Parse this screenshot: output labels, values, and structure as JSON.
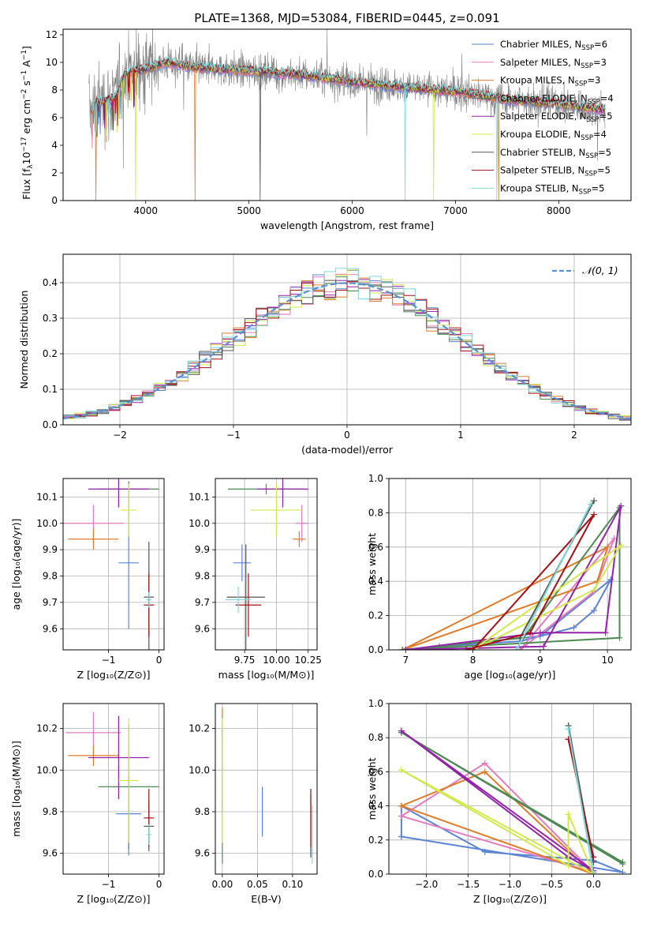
{
  "colors": {
    "blue": "#5b84d6",
    "pink": "#e37bbd",
    "orange": "#e07b28",
    "green": "#4f8a55",
    "purple": "#9322a8",
    "yellow": "#d3e84a",
    "gray": "#555555",
    "red": "#a50f15",
    "cyan": "#7fd8d8",
    "dashed": "#5b8fd6"
  },
  "chart_data": [
    {
      "id": "spectrum",
      "type": "line",
      "title": "PLATE=1368, MJD=53084, FIBERID=0445, z=0.091",
      "xlabel": "wavelength [Angstrom, rest frame]",
      "ylabel": "Flux [f_λ10^-17 erg cm^-2 s^-1 A^-1]",
      "ylabel_parts": {
        "a": "Flux [f",
        "b": "λ",
        "c": "10",
        "d": "−17",
        "e": " erg cm",
        "f": "−2",
        "g": " s",
        "h": "−1",
        "i": " A",
        "j": "−1",
        "k": "]"
      },
      "xlim": [
        3200,
        8700
      ],
      "ylim": [
        0,
        12.4
      ],
      "xticks": [
        "4000",
        "5000",
        "6000",
        "7000",
        "8000"
      ],
      "xtick_values": [
        4000,
        5000,
        6000,
        7000,
        8000
      ],
      "yticks": [
        "0",
        "2",
        "4",
        "6",
        "8",
        "10",
        "12"
      ],
      "ytick_values": [
        0,
        2,
        4,
        6,
        8,
        10,
        12
      ],
      "continuum": [
        [
          3500,
          7.0
        ],
        [
          3700,
          7.4
        ],
        [
          3800,
          9.2
        ],
        [
          4000,
          9.5
        ],
        [
          4200,
          10.0
        ],
        [
          4500,
          9.6
        ],
        [
          5000,
          9.4
        ],
        [
          5500,
          9.1
        ],
        [
          6000,
          8.6
        ],
        [
          6500,
          8.2
        ],
        [
          7000,
          7.9
        ],
        [
          7500,
          7.3
        ],
        [
          8000,
          7.0
        ],
        [
          8400,
          6.6
        ]
      ],
      "observed_range": [
        3450,
        8450
      ],
      "legend": [
        {
          "base": "Chabrier MILES, N",
          "sub": "SSP",
          "tail": "=6",
          "color": "blue"
        },
        {
          "base": "Salpeter MILES, N",
          "sub": "SSP",
          "tail": "=3",
          "color": "pink"
        },
        {
          "base": "Kroupa MILES, N",
          "sub": "SSP",
          "tail": "=3",
          "color": "orange"
        },
        {
          "base": "Chabrier ELODIE, N",
          "sub": "SSP",
          "tail": "=4",
          "color": "green"
        },
        {
          "base": "Salpeter ELODIE, N",
          "sub": "SSP",
          "tail": "=5",
          "color": "purple"
        },
        {
          "base": "Kroupa ELODIE, N",
          "sub": "SSP",
          "tail": "=4",
          "color": "yellow"
        },
        {
          "base": "Chabrier STELIB, N",
          "sub": "SSP",
          "tail": "=5",
          "color": "gray"
        },
        {
          "base": "Salpeter STELIB, N",
          "sub": "SSP",
          "tail": "=5",
          "color": "red"
        },
        {
          "base": "Kroupa STELIB, N",
          "sub": "SSP",
          "tail": "=5",
          "color": "cyan"
        }
      ]
    },
    {
      "id": "residuals",
      "type": "line",
      "xlabel": "(data-model)/error",
      "ylabel": "Normed distribution",
      "xlim": [
        -2.5,
        2.5
      ],
      "ylim": [
        0,
        0.48
      ],
      "xticks": [
        "−2",
        "−1",
        "0",
        "1",
        "2"
      ],
      "xtick_values": [
        -2,
        -1,
        0,
        1,
        2
      ],
      "yticks": [
        "0.0",
        "0.1",
        "0.2",
        "0.3",
        "0.4"
      ],
      "ytick_values": [
        0,
        0.1,
        0.2,
        0.3,
        0.4
      ],
      "bin_width": 0.1,
      "legend": {
        "label": "𝒩(0, 1)",
        "color": "dashed"
      }
    },
    {
      "id": "age_vs_Z",
      "type": "scatter",
      "xlabel": "Z [log₁₀(Z/Z⊙)]",
      "ylabel": "age  [log₁₀(age/yr)]",
      "xlim": [
        -1.9,
        0.1
      ],
      "ylim": [
        9.52,
        10.17
      ],
      "xticks": [
        "−1",
        "0"
      ],
      "xtick_values": [
        -1,
        0
      ],
      "yticks": [
        "9.6",
        "9.7",
        "9.8",
        "9.9",
        "10.0",
        "10.1"
      ],
      "ytick_values": [
        9.6,
        9.7,
        9.8,
        9.9,
        10.0,
        10.1
      ],
      "points": [
        {
          "x": -0.6,
          "xerr": 0.2,
          "y": 9.85,
          "yerr": 0.25,
          "color": "blue"
        },
        {
          "x": -1.3,
          "xerr": 0.6,
          "y": 10.0,
          "yerr": 0.07,
          "color": "pink"
        },
        {
          "x": -1.3,
          "xerr": 0.5,
          "y": 9.94,
          "yerr": 0.04,
          "color": "orange"
        },
        {
          "x": -0.6,
          "xerr": 0.6,
          "y": 10.13,
          "yerr": 0.03,
          "color": "green"
        },
        {
          "x": -0.8,
          "xerr": 0.6,
          "y": 10.13,
          "yerr": 0.07,
          "color": "purple"
        },
        {
          "x": -0.6,
          "xerr": 0.15,
          "y": 10.05,
          "yerr": 0.1,
          "color": "yellow"
        },
        {
          "x": -0.2,
          "xerr": 0.1,
          "y": 9.72,
          "yerr": 0.21,
          "color": "gray"
        },
        {
          "x": -0.2,
          "xerr": 0.1,
          "y": 9.69,
          "yerr": 0.12,
          "color": "red"
        },
        {
          "x": -0.2,
          "xerr": 0.05,
          "y": 9.71,
          "yerr": 0.03,
          "color": "cyan"
        }
      ]
    },
    {
      "id": "age_vs_mass",
      "type": "scatter",
      "xlabel": "mass [log₁₀(M/M⊙)]",
      "ylabel": "",
      "xlim": [
        9.52,
        10.32
      ],
      "ylim": [
        9.52,
        10.17
      ],
      "xticks": [
        "9.75",
        "10.00",
        "10.25"
      ],
      "xtick_values": [
        9.75,
        10.0,
        10.25
      ],
      "yticks": [
        "9.6",
        "9.7",
        "9.8",
        "9.9",
        "10.0",
        "10.1"
      ],
      "ytick_values": [
        9.6,
        9.7,
        9.8,
        9.9,
        10.0,
        10.1
      ],
      "points": [
        {
          "x": 9.73,
          "xerr": 0.07,
          "y": 9.85,
          "yerr": 0.07,
          "color": "blue"
        },
        {
          "x": 10.2,
          "xerr": 0.05,
          "y": 10.0,
          "yerr": 0.07,
          "color": "pink"
        },
        {
          "x": 10.18,
          "xerr": 0.05,
          "y": 9.94,
          "yerr": 0.03,
          "color": "orange"
        },
        {
          "x": 9.92,
          "xerr": 0.3,
          "y": 10.13,
          "yerr": 0.02,
          "color": "green"
        },
        {
          "x": 10.05,
          "xerr": 0.2,
          "y": 10.13,
          "yerr": 0.07,
          "color": "purple"
        },
        {
          "x": 10.0,
          "xerr": 0.2,
          "y": 10.05,
          "yerr": 0.1,
          "color": "yellow"
        },
        {
          "x": 9.76,
          "xerr": 0.15,
          "y": 9.72,
          "yerr": 0.2,
          "color": "gray"
        },
        {
          "x": 9.78,
          "xerr": 0.1,
          "y": 9.69,
          "yerr": 0.12,
          "color": "red"
        },
        {
          "x": 9.7,
          "xerr": 0.1,
          "y": 9.71,
          "yerr": 0.05,
          "color": "cyan"
        }
      ]
    },
    {
      "id": "massweight_vs_age",
      "type": "line",
      "xlabel": "age  [log₁₀(age/yr)]",
      "ylabel": "mass weight",
      "xlim": [
        6.75,
        10.35
      ],
      "ylim": [
        0,
        1.0
      ],
      "xticks": [
        "7",
        "8",
        "9",
        "10"
      ],
      "xtick_values": [
        7,
        8,
        9,
        10
      ],
      "yticks": [
        "0.0",
        "0.2",
        "0.4",
        "0.6",
        "0.8",
        "1.0"
      ],
      "ytick_values": [
        0,
        0.2,
        0.4,
        0.6,
        0.8,
        1.0
      ],
      "series": [
        {
          "color": "blue",
          "x": [
            7.5,
            8.7,
            9.5,
            9.8,
            10.05,
            9.0,
            7.5
          ],
          "y": [
            0.02,
            0.05,
            0.13,
            0.23,
            0.41,
            0.08,
            0.02
          ]
        },
        {
          "color": "pink",
          "x": [
            8.7,
            9.8,
            10.1,
            8.7
          ],
          "y": [
            0.0,
            0.34,
            0.65,
            0.0
          ]
        },
        {
          "color": "orange",
          "x": [
            6.95,
            9.85,
            10.0,
            6.95
          ],
          "y": [
            0.0,
            0.4,
            0.6,
            0.0
          ]
        },
        {
          "color": "green",
          "x": [
            6.95,
            8.75,
            10.18,
            10.18,
            6.95
          ],
          "y": [
            0.0,
            0.07,
            0.83,
            0.07,
            0.0
          ]
        },
        {
          "color": "purple",
          "x": [
            7.0,
            9.0,
            9.97,
            10.2,
            9.05,
            7.0
          ],
          "y": [
            0.0,
            0.1,
            0.1,
            0.84,
            0.02,
            0.0
          ]
        },
        {
          "color": "yellow",
          "x": [
            8.0,
            9.8,
            10.2,
            8.0
          ],
          "y": [
            0.0,
            0.35,
            0.61,
            0.0
          ]
        },
        {
          "color": "gray",
          "x": [
            8.7,
            9.8,
            8.7
          ],
          "y": [
            0.07,
            0.87,
            0.07
          ]
        },
        {
          "color": "red",
          "x": [
            7.9,
            8.85,
            9.8,
            8.0
          ],
          "y": [
            0.0,
            0.1,
            0.79,
            0.0
          ]
        },
        {
          "color": "cyan",
          "x": [
            8.65,
            9.75,
            8.65
          ],
          "y": [
            0.0,
            0.85,
            0.0
          ]
        }
      ]
    },
    {
      "id": "mass_vs_Z",
      "type": "scatter",
      "xlabel": "Z [log₁₀(Z/Z⊙)]",
      "ylabel": "mass [log₁₀(M/M⊙)]",
      "xlim": [
        -1.9,
        0.1
      ],
      "ylim": [
        9.5,
        10.32
      ],
      "xticks": [
        "−1",
        "0"
      ],
      "xtick_values": [
        -1,
        0
      ],
      "yticks": [
        "9.6",
        "9.8",
        "10.0",
        "10.2"
      ],
      "ytick_values": [
        9.6,
        9.8,
        10.0,
        10.2
      ],
      "points": [
        {
          "x": -0.6,
          "xerr": 0.25,
          "y": 9.79,
          "yerr": 0.2,
          "color": "blue"
        },
        {
          "x": -1.3,
          "xerr": 0.55,
          "y": 10.18,
          "yerr": 0.1,
          "color": "pink"
        },
        {
          "x": -1.3,
          "xerr": 0.5,
          "y": 10.07,
          "yerr": 0.05,
          "color": "orange"
        },
        {
          "x": -0.6,
          "xerr": 0.6,
          "y": 9.92,
          "yerr": 0.3,
          "color": "green"
        },
        {
          "x": -0.8,
          "xerr": 0.6,
          "y": 10.06,
          "yerr": 0.2,
          "color": "purple"
        },
        {
          "x": -0.6,
          "xerr": 0.2,
          "y": 9.95,
          "yerr": 0.3,
          "color": "yellow"
        },
        {
          "x": -0.2,
          "xerr": 0.1,
          "y": 9.73,
          "yerr": 0.12,
          "color": "gray"
        },
        {
          "x": -0.2,
          "xerr": 0.1,
          "y": 9.77,
          "yerr": 0.14,
          "color": "red"
        },
        {
          "x": -0.2,
          "xerr": 0.05,
          "y": 9.69,
          "yerr": 0.05,
          "color": "cyan"
        }
      ]
    },
    {
      "id": "EBV",
      "type": "scatter",
      "xlabel": "E(B-V)",
      "ylabel": "",
      "xlim": [
        -0.01,
        0.135
      ],
      "ylim": [
        9.5,
        10.32
      ],
      "xticks": [
        "0.00",
        "0.05",
        "0.10"
      ],
      "xtick_values": [
        0,
        0.05,
        0.1
      ],
      "yticks": [
        "9.6",
        "9.8",
        "10.0",
        "10.2"
      ],
      "ytick_values": [
        9.6,
        9.8,
        10.0,
        10.2
      ],
      "points": [
        {
          "x": 0.057,
          "y": 9.8,
          "yerr": 0.12,
          "color": "blue"
        },
        {
          "x": 0.0,
          "y": 10.2,
          "yerr": 0.08,
          "color": "pink"
        },
        {
          "x": 0.0,
          "y": 10.0,
          "yerr": 0.3,
          "color": "orange"
        },
        {
          "x": 0.0,
          "y": 9.7,
          "yerr": 0.15,
          "color": "green"
        },
        {
          "x": 0.0,
          "y": 10.0,
          "yerr": 0.2,
          "color": "purple"
        },
        {
          "x": 0.0,
          "y": 9.95,
          "yerr": 0.3,
          "color": "yellow"
        },
        {
          "x": 0.126,
          "y": 9.73,
          "yerr": 0.15,
          "color": "gray"
        },
        {
          "x": 0.126,
          "y": 9.77,
          "yerr": 0.14,
          "color": "red"
        },
        {
          "x": 0.128,
          "y": 9.69,
          "yerr": 0.14,
          "color": "cyan"
        }
      ]
    },
    {
      "id": "massweight_vs_Z",
      "type": "line",
      "xlabel": "Z [log₁₀(Z/Z⊙)]",
      "ylabel": "mass weight",
      "xlim": [
        -2.45,
        0.45
      ],
      "ylim": [
        0,
        1.0
      ],
      "xticks": [
        "−2.0",
        "−1.5",
        "−1.0",
        "−0.5",
        "0.0"
      ],
      "xtick_values": [
        -2,
        -1.5,
        -1,
        -0.5,
        0
      ],
      "yticks": [
        "0.0",
        "0.2",
        "0.4",
        "0.6",
        "0.8",
        "1.0"
      ],
      "ytick_values": [
        0,
        0.2,
        0.4,
        0.6,
        0.8,
        1.0
      ],
      "series": [
        {
          "color": "blue",
          "x": [
            -2.3,
            -2.3,
            -1.3,
            0.0,
            0.35,
            -2.3
          ],
          "y": [
            0.22,
            0.4,
            0.13,
            0.08,
            0.01,
            0.22
          ]
        },
        {
          "color": "pink",
          "x": [
            -2.3,
            -1.3,
            0.0,
            -2.3
          ],
          "y": [
            0.34,
            0.65,
            0.01,
            0.34
          ]
        },
        {
          "color": "orange",
          "x": [
            -2.3,
            -1.3,
            0.0,
            -2.3
          ],
          "y": [
            0.4,
            0.6,
            0.0,
            0.4
          ]
        },
        {
          "color": "green",
          "x": [
            -2.3,
            0.35,
            0.35,
            -2.3
          ],
          "y": [
            0.83,
            0.07,
            0.06,
            0.83
          ]
        },
        {
          "color": "purple",
          "x": [
            -2.3,
            -0.3,
            0.0,
            -2.3
          ],
          "y": [
            0.84,
            0.1,
            0.02,
            0.84
          ]
        },
        {
          "color": "yellow",
          "x": [
            -2.3,
            -0.3,
            -0.3,
            0.0,
            -2.3
          ],
          "y": [
            0.61,
            0.05,
            0.35,
            0.0,
            0.61
          ]
        },
        {
          "color": "gray",
          "x": [
            -0.3,
            0.0,
            -0.3
          ],
          "y": [
            0.87,
            0.07,
            0.87
          ]
        },
        {
          "color": "red",
          "x": [
            -0.3,
            0.0,
            -0.3
          ],
          "y": [
            0.79,
            0.1,
            0.79
          ]
        },
        {
          "color": "cyan",
          "x": [
            -0.3,
            0.0,
            -0.3
          ],
          "y": [
            0.85,
            0.0,
            0.85
          ]
        }
      ]
    }
  ]
}
